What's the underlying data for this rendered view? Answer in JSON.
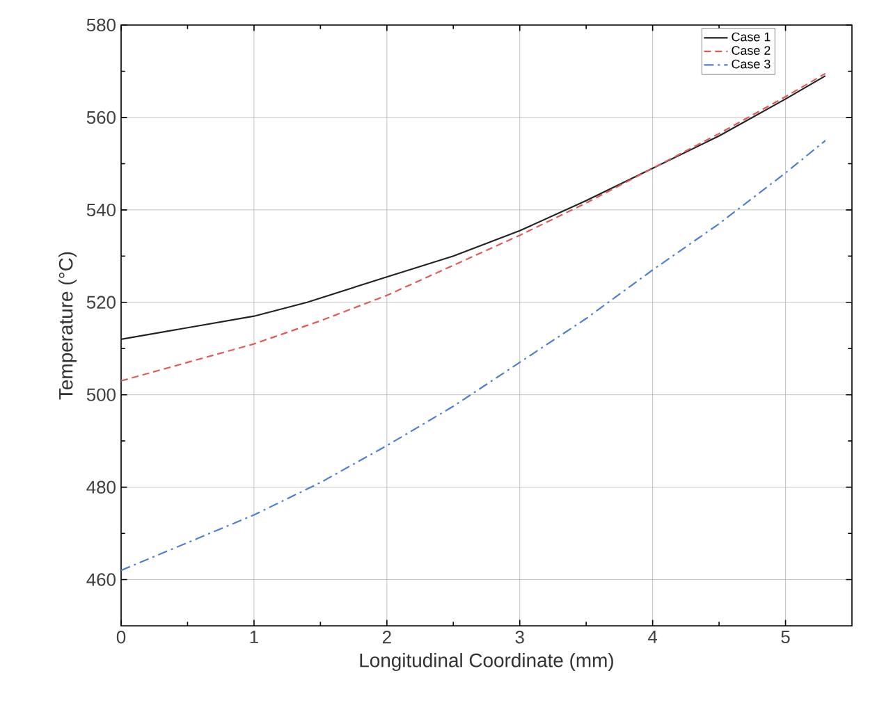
{
  "chart_data": {
    "type": "line",
    "xlabel": "Longitudinal Coordinate (mm)",
    "ylabel": "Temperature (°C)",
    "xlim": [
      0,
      5.5
    ],
    "ylim": [
      450,
      580
    ],
    "xticks": [
      0,
      1,
      2,
      3,
      4,
      5
    ],
    "yticks": [
      460,
      480,
      500,
      520,
      540,
      560,
      580
    ],
    "grid": true,
    "legend": "top right",
    "series": [
      {
        "name": "Case 1",
        "color": "#222222",
        "line_style": "solid",
        "x": [
          0,
          0.5,
          1,
          1.4,
          2,
          2.5,
          3,
          3.5,
          4,
          4.5,
          5,
          5.3
        ],
        "values": [
          512,
          514.5,
          517,
          520,
          525.5,
          530,
          535.5,
          542,
          549,
          556,
          564,
          569
        ]
      },
      {
        "name": "Case 2",
        "color": "#e05a5a",
        "line_style": "dashed",
        "x": [
          0,
          0.5,
          1,
          1.5,
          2,
          2.5,
          3,
          3.5,
          4,
          4.5,
          5,
          5.3
        ],
        "values": [
          503,
          507,
          511,
          516,
          521.5,
          528,
          534.5,
          541.5,
          549,
          556.5,
          564.5,
          569.5
        ]
      },
      {
        "name": "Case 3",
        "color": "#4f7fd0",
        "line_style": "dashdot",
        "x": [
          0,
          0.5,
          1,
          1.5,
          2,
          2.5,
          3,
          3.5,
          4,
          4.5,
          5,
          5.3
        ],
        "values": [
          462,
          468,
          474,
          481,
          489,
          497.5,
          507,
          516.5,
          527,
          537,
          548,
          555
        ]
      }
    ]
  }
}
